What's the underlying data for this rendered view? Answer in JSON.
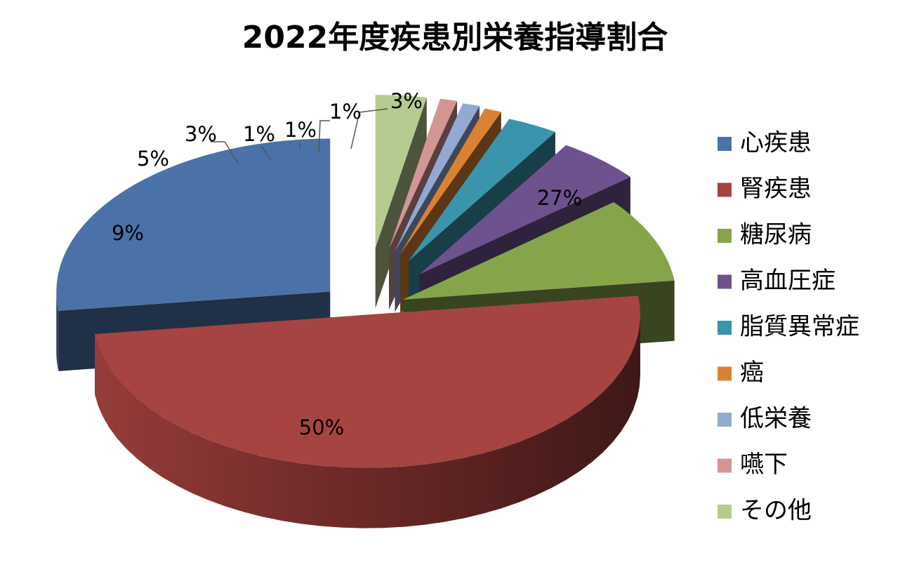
{
  "chart_data": {
    "type": "pie",
    "title": "2022年度疾患別栄養指導割合",
    "slices": [
      {
        "label": "心疾患",
        "value": 27,
        "display": "27%",
        "color": "#4A72A9",
        "exploded": true
      },
      {
        "label": "腎疾患",
        "value": 50,
        "display": "50%",
        "color": "#A64441",
        "exploded": false
      },
      {
        "label": "糖尿病",
        "value": 9,
        "display": "9%",
        "color": "#86A54B",
        "exploded": true
      },
      {
        "label": "高血圧症",
        "value": 5,
        "display": "5%",
        "color": "#6D528E",
        "exploded": true
      },
      {
        "label": "脂質異常症",
        "value": 3,
        "display": "3%",
        "color": "#3A94AB",
        "exploded": true
      },
      {
        "label": "癌",
        "value": 1,
        "display": "1%",
        "color": "#DA8232",
        "exploded": true
      },
      {
        "label": "低栄養",
        "value": 1,
        "display": "1%",
        "color": "#92A9D3",
        "exploded": true
      },
      {
        "label": "嚥下",
        "value": 1,
        "display": "1%",
        "color": "#D49695",
        "exploded": true
      },
      {
        "label": "その他",
        "value": 3,
        "display": "3%",
        "color": "#B5CB90",
        "exploded": true
      }
    ],
    "legend_position": "right",
    "style": "3d-exploded-pie"
  }
}
